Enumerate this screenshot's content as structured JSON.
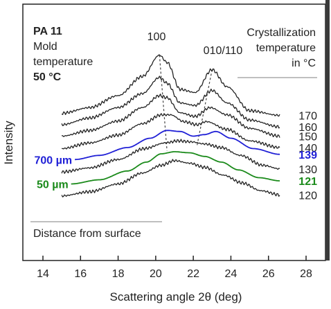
{
  "chart_data": {
    "type": "line",
    "xlabel": "Scattering angle 2θ (deg)",
    "ylabel": "Intensity",
    "xlim": [
      12.5,
      29.3
    ],
    "xticks": [
      14,
      16,
      18,
      20,
      22,
      24,
      26,
      28
    ],
    "grid": false,
    "panel_label": {
      "material": "PA 11",
      "line1": "Mold",
      "line2": "temperature",
      "value": "50 °C"
    },
    "peak_labels": {
      "first": "100",
      "second": "010/110"
    },
    "legend_title": [
      "Crystallization",
      "temperature",
      "in °C"
    ],
    "distance_label": "Distance from surface",
    "colors": {
      "default": "#222222",
      "blue": "#1f1fd6",
      "green": "#1a8a1a"
    },
    "series": [
      {
        "name": "170",
        "color": "default",
        "bold": false,
        "x": [
          15,
          16.5,
          18,
          19.3,
          20.2,
          20.6,
          21.3,
          22.1,
          23,
          23.8,
          25,
          26.6
        ],
        "y": [
          22.2,
          23.3,
          25.6,
          29.3,
          33.4,
          32.0,
          26.8,
          26.2,
          30.6,
          27.3,
          22.7,
          21.8
        ]
      },
      {
        "name": "160",
        "color": "default",
        "bold": false,
        "x": [
          15,
          16.5,
          18,
          19.3,
          20.2,
          20.6,
          21.3,
          22.1,
          23,
          23.8,
          25,
          26.6
        ],
        "y": [
          20.0,
          21.3,
          23.3,
          26.0,
          29.1,
          28.0,
          24.2,
          23.7,
          26.6,
          24.2,
          20.9,
          19.6
        ]
      },
      {
        "name": "150",
        "color": "default",
        "bold": false,
        "x": [
          15,
          16.5,
          18,
          19.3,
          20.2,
          20.6,
          21.3,
          22.1,
          22.9,
          23.8,
          25,
          26.6
        ],
        "y": [
          17.8,
          18.9,
          20.7,
          23.3,
          25.6,
          25.2,
          22.3,
          21.6,
          23.3,
          21.9,
          19.3,
          17.8
        ]
      },
      {
        "name": "140",
        "color": "default",
        "bold": false,
        "x": [
          15,
          16.5,
          18,
          19.3,
          20.3,
          20.8,
          21.5,
          22.2,
          22.7,
          23.8,
          25,
          26.6
        ],
        "y": [
          15.4,
          16.5,
          18.0,
          20.2,
          21.9,
          21.9,
          20.6,
          20.0,
          20.6,
          19.1,
          16.9,
          15.6
        ]
      },
      {
        "name": "139",
        "label": "700 µm",
        "color": "blue",
        "bold": true,
        "x": [
          15.7,
          17,
          18.5,
          19.7,
          20.6,
          21.3,
          22,
          22.6,
          23.2,
          24,
          25.2,
          26.6
        ],
        "y": [
          13.3,
          14.1,
          15.6,
          17.4,
          18.9,
          18.7,
          17.8,
          18.1,
          18.7,
          17.4,
          15.4,
          14.3
        ]
      },
      {
        "name": "130",
        "color": "default",
        "bold": false,
        "x": [
          15,
          16.5,
          18,
          19.4,
          20.5,
          21.2,
          21.9,
          22.6,
          23.5,
          24.5,
          25.7,
          26.6
        ],
        "y": [
          10.9,
          11.7,
          13.3,
          15.4,
          16.5,
          16.9,
          16.7,
          16.3,
          15.6,
          14.1,
          12.2,
          11.5
        ]
      },
      {
        "name": "121",
        "label": "50 µm",
        "color": "green",
        "bold": true,
        "x": [
          15.5,
          17,
          18.5,
          19.5,
          20.3,
          21,
          21.8,
          22.6,
          23.5,
          24.4,
          25.5,
          26.6
        ],
        "y": [
          8.6,
          9.4,
          11.1,
          12.8,
          14.4,
          14.8,
          14.6,
          13.9,
          12.8,
          11.3,
          9.8,
          9.2
        ]
      },
      {
        "name": "120",
        "color": "default",
        "bold": false,
        "x": [
          15,
          16.5,
          18,
          19.3,
          20.3,
          21,
          21.8,
          22.6,
          23.6,
          24.6,
          25.6,
          26.6
        ],
        "y": [
          6.3,
          7.1,
          8.6,
          10.7,
          12.2,
          13.1,
          12.6,
          11.8,
          10.3,
          8.8,
          7.3,
          6.5
        ]
      }
    ],
    "guide_lines": [
      {
        "x": [
          20.2,
          20.6
        ],
        "y": [
          33.4,
          15.0
        ]
      },
      {
        "x": [
          23.0,
          22.2
        ],
        "y": [
          30.6,
          16.0
        ]
      }
    ]
  }
}
